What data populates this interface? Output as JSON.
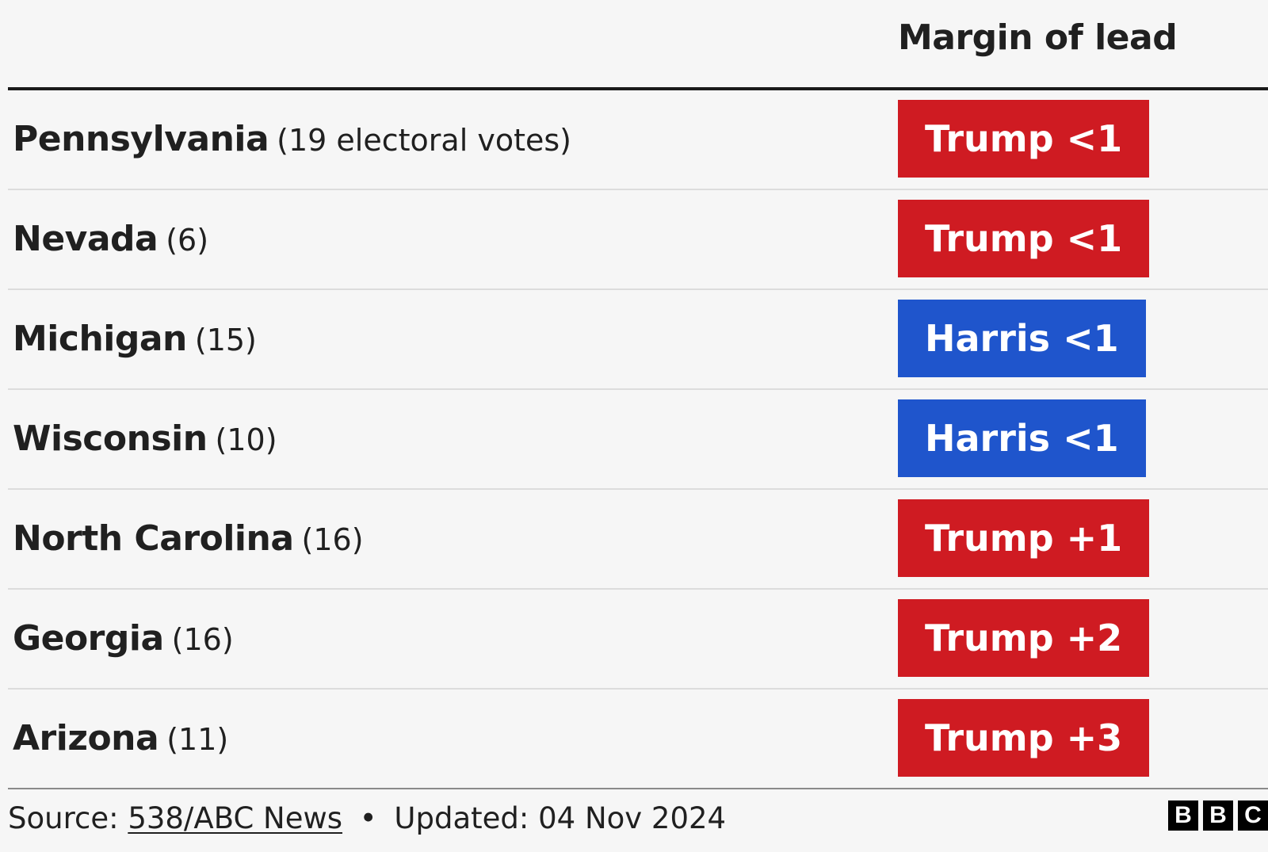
{
  "chart_data": {
    "type": "table",
    "title": "",
    "column_header": "Margin of lead",
    "rows": [
      {
        "state": "Pennsylvania",
        "votes": "(19 electoral votes)",
        "lead": "Trump <1",
        "party_color": "#cf1b22"
      },
      {
        "state": "Nevada",
        "votes": "(6)",
        "lead": "Trump <1",
        "party_color": "#cf1b22"
      },
      {
        "state": "Michigan",
        "votes": "(15)",
        "lead": "Harris <1",
        "party_color": "#1f55cc"
      },
      {
        "state": "Wisconsin",
        "votes": "(10)",
        "lead": "Harris <1",
        "party_color": "#1f55cc"
      },
      {
        "state": "North Carolina",
        "votes": "(16)",
        "lead": "Trump +1",
        "party_color": "#cf1b22"
      },
      {
        "state": "Georgia",
        "votes": "(16)",
        "lead": "Trump +2",
        "party_color": "#cf1b22"
      },
      {
        "state": "Arizona",
        "votes": "(11)",
        "lead": "Trump +3",
        "party_color": "#cf1b22"
      }
    ]
  },
  "footer": {
    "source_label": "Source:",
    "source_link": "538/ABC News",
    "separator": "•",
    "updated": "Updated: 04 Nov 2024"
  },
  "logo": {
    "letters": [
      "B",
      "B",
      "C"
    ],
    "name": "bbc-logo"
  },
  "colors": {
    "trump": "#cf1b22",
    "harris": "#1f55cc",
    "background": "#f6f6f6"
  }
}
